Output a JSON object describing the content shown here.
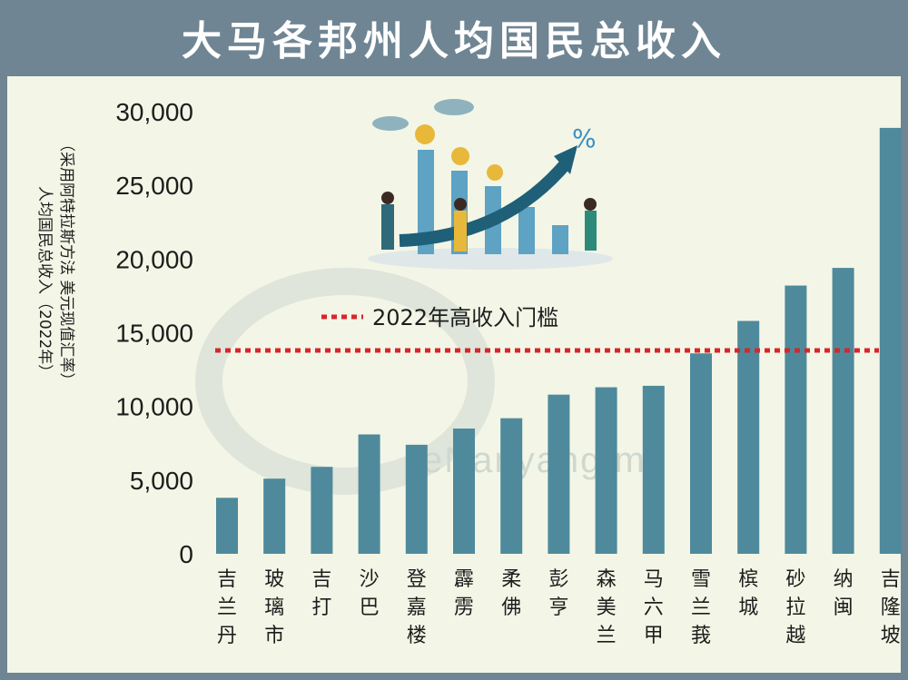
{
  "title": "大马各邦州人均国民总收入",
  "watermark": "eNanyang.my",
  "chart_data": {
    "type": "bar",
    "title": "大马各邦州人均国民总收入",
    "ylabel_line1": "人均国民总收入（2022年）",
    "ylabel_line2": "（采用阿特拉斯方法 美元现值汇率）",
    "ylim": [
      0,
      30000
    ],
    "yticks": [
      "0",
      "5,000",
      "10,000",
      "15,000",
      "20,000",
      "25,000",
      "30,000"
    ],
    "categories": [
      "吉兰丹",
      "玻璃市",
      "吉打",
      "沙巴",
      "登嘉楼",
      "霹雳",
      "柔佛",
      "彭亨",
      "森美兰",
      "马六甲",
      "雪兰莪",
      "槟城",
      "砂拉越",
      "纳闽",
      "吉隆坡"
    ],
    "values": [
      3800,
      5100,
      5900,
      8100,
      7400,
      8500,
      9200,
      10800,
      11300,
      11400,
      13600,
      15800,
      18200,
      19400,
      28900
    ],
    "threshold": {
      "label": "2022年高收入门槛",
      "value": 13800
    },
    "grid": false,
    "legend": "none"
  },
  "colors": {
    "bar": "#4e8a9c",
    "threshold": "#d8262a",
    "frame": "#6f8593",
    "panel": "#f3f6e6"
  }
}
